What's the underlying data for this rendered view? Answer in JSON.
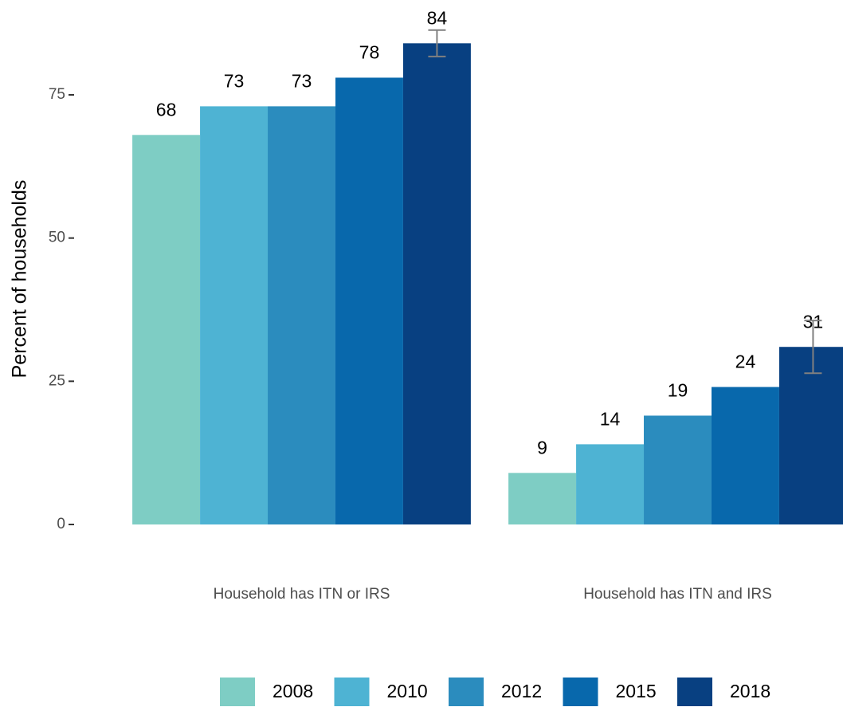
{
  "chart_data": {
    "type": "bar",
    "y_label": "Percent of households",
    "categories": [
      "Household has ITN or IRS",
      "Household has ITN and IRS"
    ],
    "series": [
      {
        "name": "2008",
        "color": "#7ecdc4",
        "values": [
          68,
          9
        ]
      },
      {
        "name": "2010",
        "color": "#4eb3d3",
        "values": [
          73,
          14
        ]
      },
      {
        "name": "2012",
        "color": "#2b8cbe",
        "values": [
          73,
          19
        ]
      },
      {
        "name": "2015",
        "color": "#0868ac",
        "values": [
          78,
          24
        ]
      },
      {
        "name": "2018",
        "color": "#084081",
        "values": [
          84,
          31
        ],
        "errors": [
          2.3,
          4.6
        ]
      }
    ],
    "ylim": [
      0,
      75
    ],
    "yticks": [
      0,
      25,
      50,
      75
    ],
    "legend": "bottom"
  }
}
